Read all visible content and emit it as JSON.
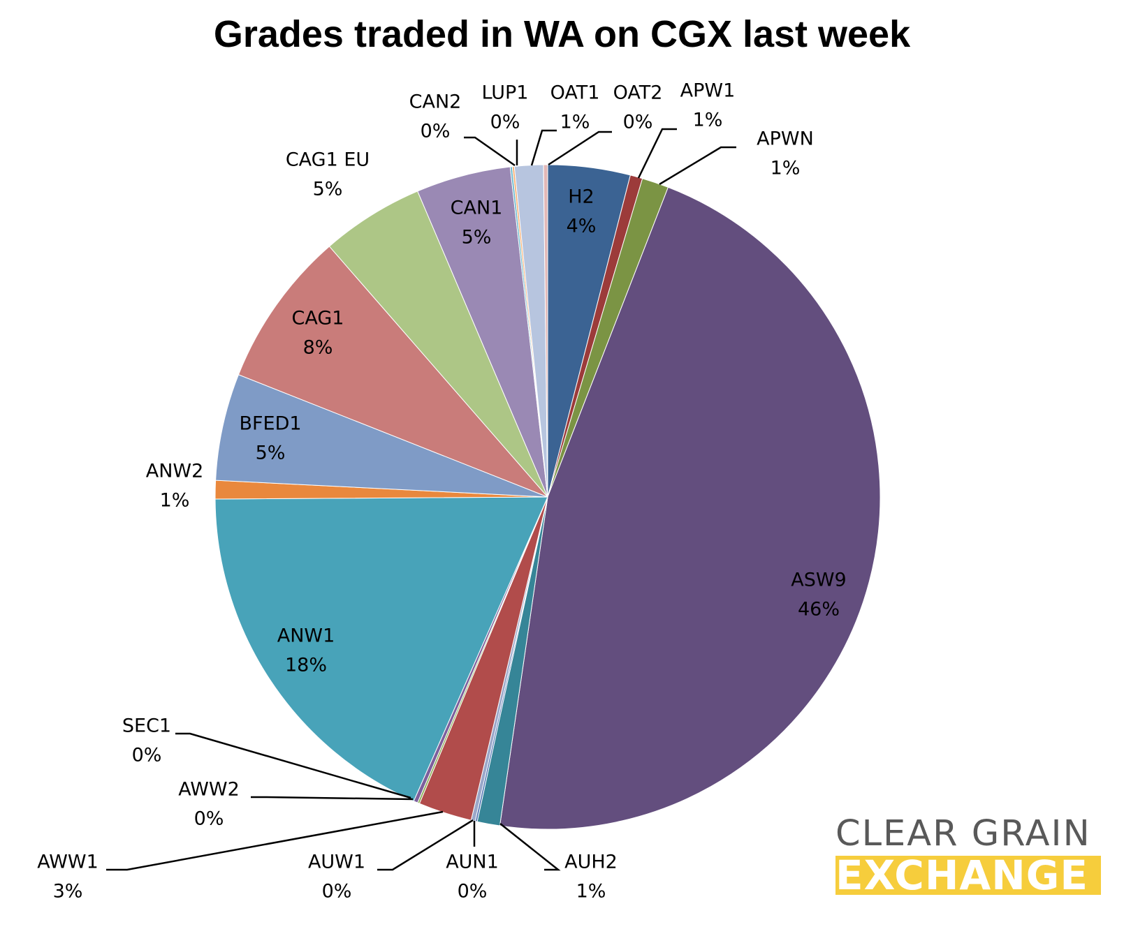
{
  "chart_data": {
    "type": "pie",
    "title": "Grades traded in WA on CGX last week",
    "start_angle_deg": 0,
    "direction": "clockwise",
    "slices": [
      {
        "label": "H2",
        "value": 4,
        "percent_label": "4%",
        "color": "#3b6393"
      },
      {
        "label": "APW1",
        "value": 0.6,
        "percent_label": "1%",
        "color": "#9c3b3a"
      },
      {
        "label": "APWN",
        "value": 1.3,
        "percent_label": "1%",
        "color": "#7b9444"
      },
      {
        "label": "ASW9",
        "value": 46.4,
        "percent_label": "46%",
        "color": "#634e7e"
      },
      {
        "label": "AUH2",
        "value": 1.1,
        "percent_label": "1%",
        "color": "#368597"
      },
      {
        "label": "AUN1",
        "value": 0.1,
        "percent_label": "0%",
        "color": "#5b7cb8"
      },
      {
        "label": "AUW1",
        "value": 0.2,
        "percent_label": "0%",
        "color": "#9aa7c9"
      },
      {
        "label": "AWW1",
        "value": 2.6,
        "percent_label": "3%",
        "color": "#b14c4b"
      },
      {
        "label": "AWW2",
        "value": 0.1,
        "percent_label": "0%",
        "color": "#8fb05a"
      },
      {
        "label": "SEC1",
        "value": 0.2,
        "percent_label": "0%",
        "color": "#7d5f9c"
      },
      {
        "label": "ANW1",
        "value": 18.3,
        "percent_label": "18%",
        "color": "#48a3b9"
      },
      {
        "label": "ANW2",
        "value": 0.9,
        "percent_label": "1%",
        "color": "#e9883d"
      },
      {
        "label": "BFED1",
        "value": 5.2,
        "percent_label": "5%",
        "color": "#7f9bc6"
      },
      {
        "label": "CAG1",
        "value": 7.6,
        "percent_label": "8%",
        "color": "#c97c7a"
      },
      {
        "label": "CAG1 EU",
        "value": 5,
        "percent_label": "5%",
        "color": "#adc686"
      },
      {
        "label": "CAN1",
        "value": 4.6,
        "percent_label": "5%",
        "color": "#9a89b4"
      },
      {
        "label": "CAN2",
        "value": 0.1,
        "percent_label": "0%",
        "color": "#69b8cc"
      },
      {
        "label": "LUP1",
        "value": 0.1,
        "percent_label": "0%",
        "color": "#f6b177"
      },
      {
        "label": "OAT1",
        "value": 1.4,
        "percent_label": "1%",
        "color": "#b7c5df"
      },
      {
        "label": "OAT2",
        "value": 0.2,
        "percent_label": "0%",
        "color": "#e2b7b6"
      }
    ]
  },
  "logo": {
    "line1": "CLEAR GRAIN",
    "line2": "EXCHANGE",
    "text_color": "#595959",
    "accent_color": "#f6cd3c"
  }
}
